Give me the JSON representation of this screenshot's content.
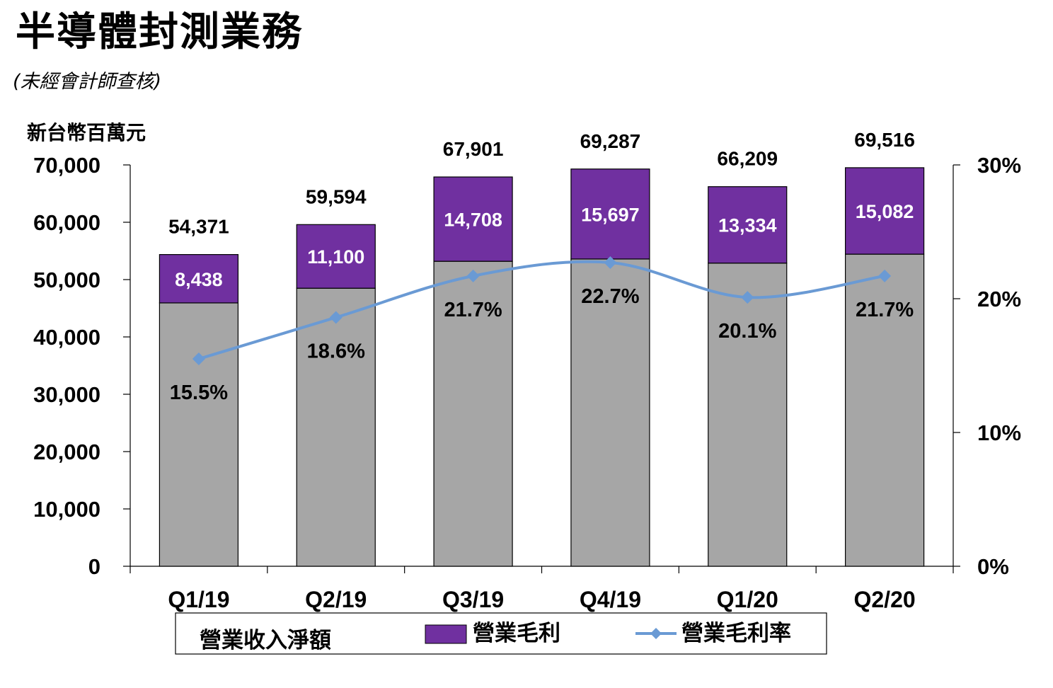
{
  "page": {
    "title": "半導體封測業務",
    "subtitle": "(未經會計師查核)"
  },
  "chart_data": {
    "type": "bar",
    "stacked": true,
    "categories": [
      "Q1/19",
      "Q2/19",
      "Q3/19",
      "Q4/19",
      "Q1/20",
      "Q2/20"
    ],
    "y_unit_label": "新台幣百萬元",
    "ylim": [
      0,
      70000
    ],
    "y_ticks": [
      0,
      10000,
      20000,
      30000,
      40000,
      50000,
      60000,
      70000
    ],
    "y_tick_labels": [
      "0",
      "10,000",
      "20,000",
      "30,000",
      "40,000",
      "50,000",
      "60,000",
      "70,000"
    ],
    "y2lim": [
      0,
      30
    ],
    "y2_ticks": [
      0,
      10,
      20,
      30
    ],
    "y2_tick_labels": [
      "0%",
      "10%",
      "20%",
      "30%"
    ],
    "totals": [
      54371,
      59594,
      67901,
      69287,
      66209,
      69516
    ],
    "total_labels": [
      "54,371",
      "59,594",
      "67,901",
      "69,287",
      "66,209",
      "69,516"
    ],
    "series": [
      {
        "name": "營業收入淨額",
        "kind": "bar",
        "color": "#a6a6a6",
        "values": [
          45933,
          48494,
          53193,
          53590,
          52875,
          54434
        ]
      },
      {
        "name": "營業毛利",
        "kind": "bar",
        "color": "#7030a0",
        "values": [
          8438,
          11100,
          14708,
          15697,
          13334,
          15082
        ],
        "labels": [
          "8,438",
          "11,100",
          "14,708",
          "15,697",
          "13,334",
          "15,082"
        ]
      },
      {
        "name": "營業毛利率",
        "kind": "line",
        "axis": "right",
        "color": "#6a9ad4",
        "values": [
          15.5,
          18.6,
          21.7,
          22.7,
          20.1,
          21.7
        ],
        "labels": [
          "15.5%",
          "18.6%",
          "21.7%",
          "22.7%",
          "20.1%",
          "21.7%"
        ]
      }
    ],
    "legend": [
      "營業收入淨額",
      "營業毛利",
      "營業毛利率"
    ]
  }
}
